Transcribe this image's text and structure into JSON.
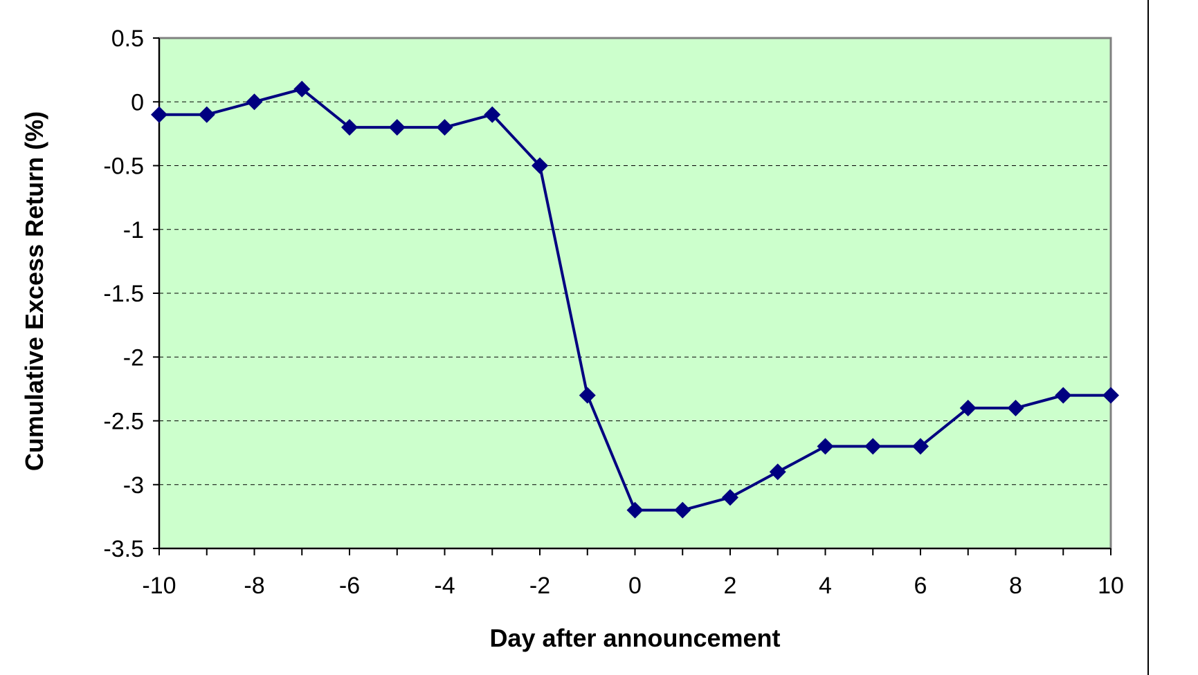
{
  "chart_data": {
    "type": "line",
    "title": "",
    "xlabel": "Day after announcement",
    "ylabel": "Cumulative Excess Return (%)",
    "xlim": [
      -10,
      10
    ],
    "ylim": [
      -3.5,
      0.5
    ],
    "x_ticks": [
      -10,
      -8,
      -6,
      -4,
      -2,
      0,
      2,
      4,
      6,
      8,
      10
    ],
    "x_tick_labels": [
      "-10",
      "-8",
      "-6",
      "-4",
      "-2",
      "0",
      "2",
      "4",
      "6",
      "8",
      "10"
    ],
    "y_ticks": [
      0.5,
      0,
      -0.5,
      -1,
      -1.5,
      -2,
      -2.5,
      -3,
      -3.5
    ],
    "y_tick_labels": [
      "0.5",
      "0",
      "-0.5",
      "-1",
      "-1.5",
      "-2",
      "-2.5",
      "-3",
      "-3.5"
    ],
    "grid": "horizontal dashed",
    "legend": "none",
    "series": [
      {
        "x": [
          -10,
          -9,
          -8,
          -7,
          -6,
          -5,
          -4,
          -3,
          -2,
          -1,
          0,
          1,
          2,
          3,
          4,
          5,
          6,
          7,
          8,
          9,
          10
        ],
        "y": [
          -0.1,
          -0.1,
          0.0,
          0.1,
          -0.2,
          -0.2,
          -0.2,
          -0.1,
          -0.5,
          -2.3,
          -3.2,
          -3.2,
          -3.1,
          -2.9,
          -2.7,
          -2.7,
          -2.7,
          -2.4,
          -2.4,
          -2.3,
          -2.3
        ],
        "marker": "diamond",
        "color": "#000080"
      }
    ],
    "colors": {
      "plot_background": "#ccffcc",
      "plot_border": "#808080",
      "gridline": "#000000",
      "series": "#000080"
    }
  }
}
